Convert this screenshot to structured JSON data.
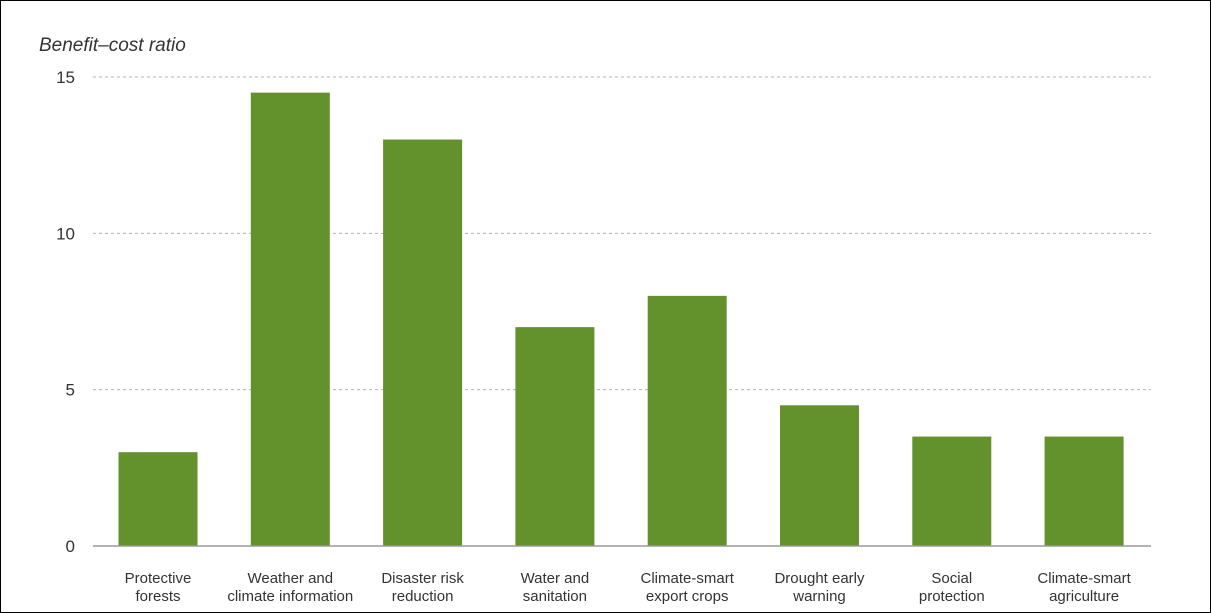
{
  "chart_data": {
    "type": "bar",
    "ylabel": "Benefit–cost ratio",
    "xlabel": "",
    "title": "",
    "ylim": [
      0,
      15
    ],
    "yticks": [
      0,
      5,
      10,
      15
    ],
    "grid": true,
    "categories": [
      [
        "Protective",
        "forests"
      ],
      [
        "Weather and",
        "climate information"
      ],
      [
        "Disaster risk",
        "reduction"
      ],
      [
        "Water and",
        "sanitation"
      ],
      [
        "Climate-smart",
        "export crops"
      ],
      [
        "Drought early",
        "warning"
      ],
      [
        "Social",
        "protection"
      ],
      [
        "Climate-smart",
        "agriculture"
      ]
    ],
    "values": [
      3,
      14.5,
      13,
      7,
      8,
      4.5,
      3.5,
      3.5
    ],
    "bar_color": "#63912c",
    "grid_color": "#b3b3b3"
  }
}
